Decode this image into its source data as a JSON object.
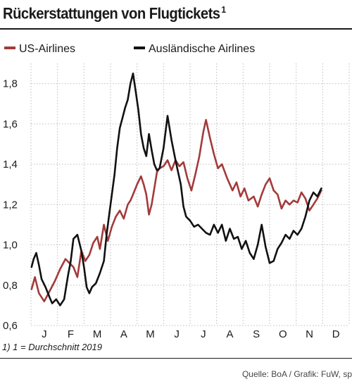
{
  "header": {
    "title": "Rückerstattungen von Flugtickets",
    "title_sup": "1"
  },
  "footer": {
    "footnote": "1) 1 = Durchschnitt 2019",
    "source": "Quelle: BoA / Grafik: FuW, sp"
  },
  "colors": {
    "us": "#a33a3a",
    "foreign": "#111111",
    "grid": "#bdbdbd"
  },
  "chart_data": {
    "type": "line",
    "title": "Rückerstattungen von Flugtickets",
    "xlabel": "",
    "ylabel": "",
    "x_ticks": [
      "J",
      "F",
      "M",
      "A",
      "M",
      "J",
      "J",
      "A",
      "S",
      "O",
      "N",
      "D"
    ],
    "xlim": [
      0,
      12
    ],
    "ylim": [
      0.6,
      1.9
    ],
    "y_ticks": [
      "0,6",
      "0,8",
      "1,0",
      "1,2",
      "1,4",
      "1,6",
      "1,8"
    ],
    "y_tick_values": [
      0.6,
      0.8,
      1.0,
      1.2,
      1.4,
      1.6,
      1.8
    ],
    "grid": true,
    "legend_position": "top",
    "series": [
      {
        "name": "US-Airlines",
        "color": "#a33a3a",
        "x": [
          0.02,
          0.15,
          0.3,
          0.5,
          0.7,
          0.9,
          1.1,
          1.3,
          1.45,
          1.6,
          1.75,
          1.9,
          2.05,
          2.2,
          2.35,
          2.5,
          2.6,
          2.75,
          2.9,
          3.05,
          3.2,
          3.35,
          3.5,
          3.65,
          3.75,
          3.85,
          4.0,
          4.15,
          4.25,
          4.35,
          4.45,
          4.55,
          4.65,
          4.75,
          4.85,
          5.0,
          5.15,
          5.3,
          5.45,
          5.6,
          5.75,
          5.9,
          6.05,
          6.2,
          6.35,
          6.5,
          6.6,
          6.75,
          6.9,
          7.05,
          7.2,
          7.4,
          7.6,
          7.75,
          7.9,
          8.05,
          8.2,
          8.4,
          8.55,
          8.7,
          8.85,
          9.0,
          9.15,
          9.3,
          9.45,
          9.6,
          9.75,
          9.9,
          10.05,
          10.2,
          10.35,
          10.5,
          10.65,
          10.8,
          10.95
        ],
        "y": [
          0.78,
          0.84,
          0.76,
          0.72,
          0.77,
          0.82,
          0.88,
          0.93,
          0.91,
          0.89,
          0.84,
          0.97,
          0.92,
          0.95,
          1.01,
          1.04,
          0.98,
          1.1,
          1.02,
          1.09,
          1.14,
          1.17,
          1.13,
          1.2,
          1.22,
          1.25,
          1.3,
          1.34,
          1.3,
          1.25,
          1.15,
          1.2,
          1.28,
          1.36,
          1.38,
          1.39,
          1.42,
          1.37,
          1.42,
          1.39,
          1.41,
          1.33,
          1.27,
          1.35,
          1.44,
          1.56,
          1.62,
          1.53,
          1.45,
          1.38,
          1.4,
          1.33,
          1.27,
          1.31,
          1.24,
          1.28,
          1.22,
          1.24,
          1.19,
          1.25,
          1.3,
          1.33,
          1.27,
          1.25,
          1.18,
          1.22,
          1.2,
          1.22,
          1.21,
          1.26,
          1.23,
          1.17,
          1.2,
          1.23,
          1.27
        ]
      },
      {
        "name": "Ausländische Airlines",
        "color": "#111111",
        "x": [
          0.02,
          0.1,
          0.2,
          0.3,
          0.4,
          0.55,
          0.7,
          0.8,
          0.95,
          1.1,
          1.25,
          1.4,
          1.5,
          1.6,
          1.75,
          1.9,
          2.0,
          2.1,
          2.2,
          2.3,
          2.45,
          2.6,
          2.75,
          2.85,
          2.95,
          3.05,
          3.15,
          3.25,
          3.35,
          3.45,
          3.55,
          3.65,
          3.75,
          3.85,
          3.95,
          4.05,
          4.15,
          4.25,
          4.35,
          4.45,
          4.55,
          4.65,
          4.75,
          4.85,
          5.0,
          5.15,
          5.3,
          5.45,
          5.55,
          5.65,
          5.75,
          5.85,
          6.0,
          6.15,
          6.3,
          6.45,
          6.6,
          6.75,
          6.9,
          7.05,
          7.2,
          7.35,
          7.5,
          7.65,
          7.8,
          7.95,
          8.1,
          8.25,
          8.4,
          8.55,
          8.7,
          8.85,
          9.0,
          9.15,
          9.3,
          9.45,
          9.6,
          9.75,
          9.9,
          10.05,
          10.2,
          10.35,
          10.5,
          10.65,
          10.8,
          10.95
        ],
        "y": [
          0.89,
          0.93,
          0.96,
          0.9,
          0.83,
          0.79,
          0.74,
          0.71,
          0.73,
          0.7,
          0.73,
          0.85,
          0.92,
          1.03,
          1.05,
          0.97,
          0.89,
          0.79,
          0.76,
          0.79,
          0.81,
          0.86,
          0.92,
          1.05,
          1.15,
          1.25,
          1.35,
          1.48,
          1.58,
          1.63,
          1.68,
          1.72,
          1.8,
          1.85,
          1.76,
          1.67,
          1.55,
          1.48,
          1.44,
          1.55,
          1.47,
          1.4,
          1.37,
          1.38,
          1.48,
          1.64,
          1.52,
          1.42,
          1.36,
          1.3,
          1.19,
          1.14,
          1.12,
          1.09,
          1.1,
          1.08,
          1.06,
          1.05,
          1.1,
          1.06,
          1.1,
          1.02,
          1.08,
          1.03,
          1.04,
          0.98,
          1.02,
          0.96,
          0.93,
          1.0,
          1.1,
          0.99,
          0.91,
          0.92,
          0.98,
          1.01,
          1.05,
          1.03,
          1.07,
          1.05,
          1.08,
          1.14,
          1.22,
          1.26,
          1.24,
          1.28
        ]
      }
    ]
  }
}
